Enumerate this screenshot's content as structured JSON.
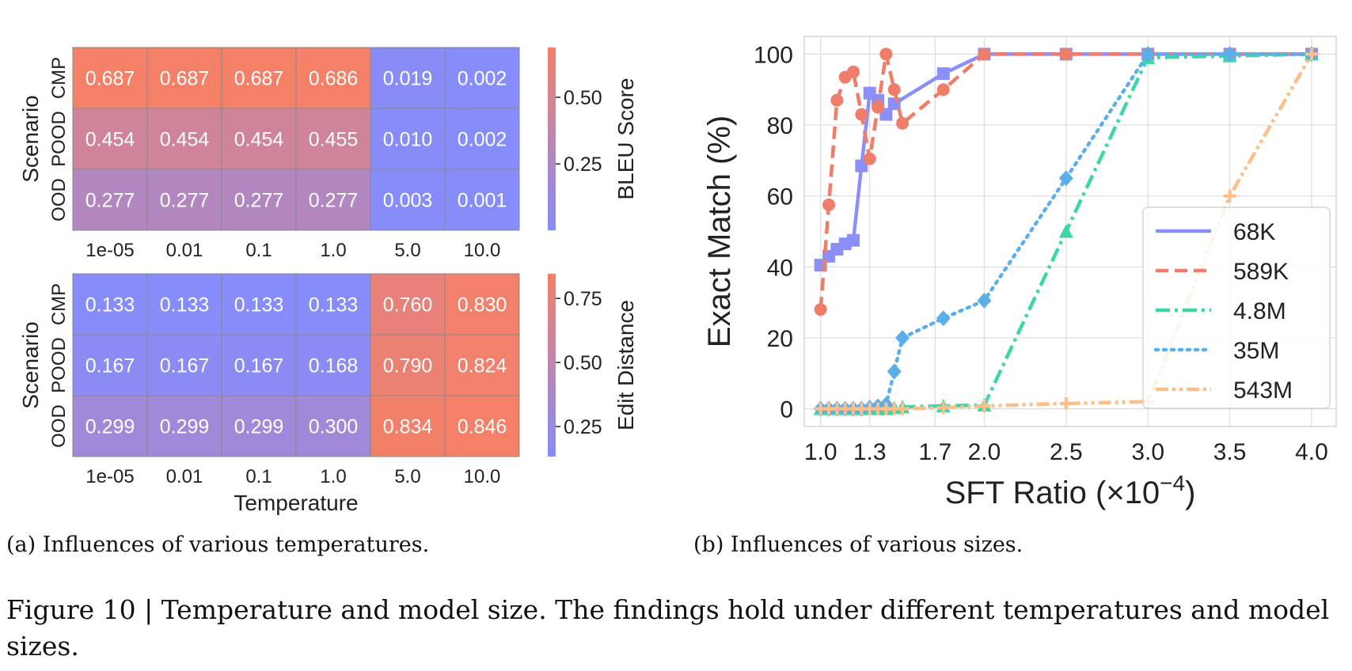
{
  "heatmaps": [
    {
      "name": "bleu",
      "ylabel": "Scenario",
      "rows": [
        "CMP",
        "POOD",
        "OOD"
      ],
      "cols": [
        "1e-05",
        "0.01",
        "0.1",
        "1.0",
        "5.0",
        "10.0"
      ],
      "values": [
        [
          0.687,
          0.687,
          0.687,
          0.686,
          0.019,
          0.002
        ],
        [
          0.454,
          0.454,
          0.454,
          0.455,
          0.01,
          0.002
        ],
        [
          0.277,
          0.277,
          0.277,
          0.277,
          0.003,
          0.001
        ]
      ],
      "cbar_label": "BLEU Score",
      "cbar_ticks": [
        0.25,
        0.5
      ],
      "cbar_ticklabels": [
        "0.25",
        "0.50"
      ],
      "vmin": 0.001,
      "vmax": 0.687
    },
    {
      "name": "edit",
      "ylabel": "Scenario",
      "rows": [
        "CMP",
        "POOD",
        "OOD"
      ],
      "cols": [
        "1e-05",
        "0.01",
        "0.1",
        "1.0",
        "5.0",
        "10.0"
      ],
      "values": [
        [
          0.133,
          0.133,
          0.133,
          0.133,
          0.76,
          0.83
        ],
        [
          0.167,
          0.167,
          0.167,
          0.168,
          0.79,
          0.824
        ],
        [
          0.299,
          0.299,
          0.299,
          0.3,
          0.834,
          0.846
        ]
      ],
      "cbar_label": "Edit Distance",
      "cbar_ticks": [
        0.25,
        0.5,
        0.75
      ],
      "cbar_ticklabels": [
        "0.25",
        "0.50",
        "0.75"
      ],
      "vmin": 0.133,
      "vmax": 0.846,
      "xlabel": "Temperature"
    }
  ],
  "chart_data": [
    {
      "type": "heatmap",
      "ylabel": "Scenario",
      "rows": [
        "CMP",
        "POOD",
        "OOD"
      ],
      "cols": [
        "1e-05",
        "0.01",
        "0.1",
        "1.0",
        "5.0",
        "10.0"
      ],
      "values": [
        [
          0.687,
          0.687,
          0.687,
          0.686,
          0.019,
          0.002
        ],
        [
          0.454,
          0.454,
          0.454,
          0.455,
          0.01,
          0.002
        ],
        [
          0.277,
          0.277,
          0.277,
          0.277,
          0.003,
          0.001
        ]
      ],
      "colorbar_label": "BLEU Score"
    },
    {
      "type": "heatmap",
      "xlabel": "Temperature",
      "ylabel": "Scenario",
      "rows": [
        "CMP",
        "POOD",
        "OOD"
      ],
      "cols": [
        "1e-05",
        "0.01",
        "0.1",
        "1.0",
        "5.0",
        "10.0"
      ],
      "values": [
        [
          0.133,
          0.133,
          0.133,
          0.133,
          0.76,
          0.83
        ],
        [
          0.167,
          0.167,
          0.167,
          0.168,
          0.79,
          0.824
        ],
        [
          0.299,
          0.299,
          0.299,
          0.3,
          0.834,
          0.846
        ]
      ],
      "colorbar_label": "Edit Distance"
    },
    {
      "type": "line",
      "xlabel": "SFT Ratio (×10",
      "xlabel_sup": "−4",
      "xlabel_suffix": ")",
      "ylabel": "Exact Match (%)",
      "xlim": [
        0.9,
        4.15
      ],
      "ylim": [
        -5,
        105
      ],
      "xticks": [
        1.0,
        1.3,
        1.7,
        2.0,
        2.5,
        3.0,
        3.5,
        4.0
      ],
      "xticklabels": [
        "1.0",
        "1.3",
        "1.7",
        "2.0",
        "2.5",
        "3.0",
        "3.5",
        "4.0"
      ],
      "yticks": [
        0,
        20,
        40,
        60,
        80,
        100
      ],
      "yticklabels": [
        "0",
        "20",
        "40",
        "60",
        "80",
        "100"
      ],
      "grid": true,
      "legend_position": "center-right",
      "series": [
        {
          "name": "68K",
          "color": "#8b8ff8",
          "dash": "solid",
          "marker": "square",
          "x": [
            1.0,
            1.05,
            1.1,
            1.15,
            1.2,
            1.25,
            1.3,
            1.35,
            1.4,
            1.45,
            1.75,
            2.0,
            2.5,
            3.0,
            3.5,
            4.0
          ],
          "y": [
            40.5,
            43,
            45,
            46.5,
            47.5,
            68.5,
            89,
            87,
            83,
            86,
            94.5,
            100,
            100,
            100,
            100,
            100
          ]
        },
        {
          "name": "589K",
          "color": "#f07d6a",
          "dash": "dashed",
          "marker": "circle",
          "x": [
            1.0,
            1.05,
            1.1,
            1.15,
            1.2,
            1.25,
            1.3,
            1.35,
            1.4,
            1.45,
            1.5,
            1.75,
            2.0,
            2.5,
            3.0,
            3.5,
            4.0
          ],
          "y": [
            28,
            57.5,
            87,
            93.5,
            95,
            83,
            70.5,
            85,
            100,
            90,
            80.5,
            90,
            100,
            100,
            100,
            100,
            100
          ]
        },
        {
          "name": "4.8M",
          "color": "#3ed6a8",
          "dash": "dashdot",
          "marker": "triangle",
          "x": [
            1.0,
            1.05,
            1.1,
            1.15,
            1.2,
            1.25,
            1.3,
            1.35,
            1.4,
            1.45,
            1.5,
            1.75,
            2.0,
            2.5,
            3.0,
            3.5,
            4.0
          ],
          "y": [
            0,
            0,
            0,
            0,
            0,
            0,
            0,
            0,
            0,
            0.3,
            0.5,
            0.8,
            1,
            50,
            99,
            99.5,
            100
          ]
        },
        {
          "name": "35M",
          "color": "#5aaeea",
          "dash": "dotted",
          "marker": "diamond",
          "x": [
            1.0,
            1.05,
            1.1,
            1.15,
            1.2,
            1.25,
            1.3,
            1.35,
            1.4,
            1.45,
            1.5,
            1.75,
            2.0,
            2.5,
            3.0,
            3.5,
            4.0
          ],
          "y": [
            0,
            0,
            0,
            0,
            0,
            0,
            0.3,
            0.7,
            1.2,
            10.5,
            20,
            25.5,
            30.5,
            65,
            100,
            100,
            100
          ]
        },
        {
          "name": "543M",
          "color": "#fdbf8a",
          "dash": "dashdotdot",
          "marker": "plus",
          "x": [
            1.0,
            1.05,
            1.1,
            1.15,
            1.2,
            1.25,
            1.3,
            1.35,
            1.4,
            1.45,
            1.5,
            1.75,
            2.0,
            2.5,
            3.0,
            3.5,
            4.0
          ],
          "y": [
            0,
            0,
            0,
            0,
            0,
            0,
            0,
            0,
            0,
            0,
            0,
            0.3,
            0.8,
            1.5,
            2,
            60,
            100
          ]
        }
      ]
    }
  ],
  "captions": {
    "a": "(a) Influences of various temperatures.",
    "b": "(b) Influences of various sizes.",
    "main": "Figure 10 | Temperature and model size. The findings hold under different temperatures and model sizes."
  }
}
